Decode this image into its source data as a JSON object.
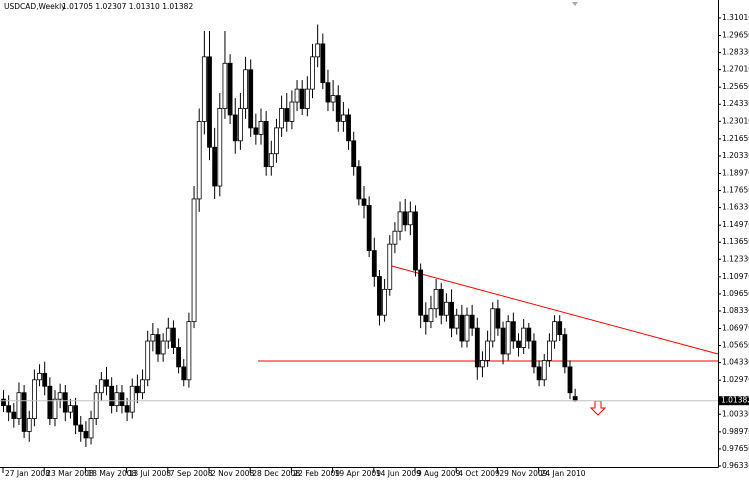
{
  "chart_data": {
    "type": "candlestick",
    "title": "USDCAD,Weekly",
    "info": "1.01705 1.02307 1.01310 1.01382",
    "categories": [
      "27 Jan 2008",
      null,
      null,
      null,
      null,
      null,
      null,
      null,
      "23 Mar 2008",
      null,
      null,
      null,
      null,
      null,
      null,
      null,
      "18 May 2008",
      null,
      null,
      null,
      null,
      null,
      null,
      null,
      "13 Jul 2008",
      null,
      null,
      null,
      null,
      null,
      null,
      null,
      "7 Sep 2008",
      null,
      null,
      null,
      null,
      null,
      null,
      null,
      "2 Nov 2008",
      null,
      null,
      null,
      null,
      null,
      null,
      null,
      "28 Dec 2008",
      null,
      null,
      null,
      null,
      null,
      null,
      null,
      "22 Feb 2009",
      null,
      null,
      null,
      null,
      null,
      null,
      null,
      "19 Apr 2009",
      null,
      null,
      null,
      null,
      null,
      null,
      null,
      "14 Jun 2009",
      null,
      null,
      null,
      null,
      null,
      null,
      null,
      "9 Aug 2009",
      null,
      null,
      null,
      null,
      null,
      null,
      null,
      "4 Oct 2009",
      null,
      null,
      null,
      null,
      null,
      null,
      null,
      "29 Nov 2009",
      null,
      null,
      null,
      null,
      null,
      null,
      null,
      "24 Jan 2010",
      null,
      null,
      null,
      null,
      null,
      null,
      null
    ],
    "open": [
      1.015,
      1.01,
      1.005,
      1.0,
      1.02,
      0.99,
      1.0,
      1.03,
      1.035,
      1.025,
      1.0,
      1.015,
      1.02,
      1.005,
      1.01,
      0.995,
      0.99,
      0.985,
      1.0,
      1.02,
      1.03,
      1.025,
      1.01,
      1.02,
      1.01,
      1.005,
      1.025,
      1.02,
      1.03,
      1.06,
      1.065,
      1.05,
      1.06,
      1.07,
      1.055,
      1.04,
      1.03,
      1.075,
      1.17,
      1.23,
      1.28,
      1.21,
      1.18,
      1.24,
      1.275,
      1.235,
      1.215,
      1.24,
      1.27,
      1.225,
      1.22,
      1.23,
      1.195,
      1.205,
      1.225,
      1.24,
      1.23,
      1.245,
      1.255,
      1.24,
      1.255,
      1.28,
      1.29,
      1.26,
      1.245,
      1.25,
      1.23,
      1.235,
      1.215,
      1.195,
      1.17,
      1.165,
      1.13,
      1.11,
      1.08,
      1.1,
      1.135,
      1.145,
      1.16,
      1.15,
      1.16,
      1.115,
      1.08,
      1.075,
      1.085,
      1.1,
      1.08,
      1.09,
      1.07,
      1.08,
      1.06,
      1.08,
      1.07,
      1.04,
      1.045,
      1.06,
      1.085,
      1.07,
      1.05,
      1.075,
      1.06,
      1.055,
      1.07,
      1.06,
      1.04,
      1.03,
      1.045,
      1.06,
      1.075,
      1.065,
      1.04,
      1.01705
    ],
    "high": [
      1.022,
      1.018,
      1.012,
      1.028,
      1.026,
      1.006,
      1.038,
      1.042,
      1.044,
      1.032,
      1.022,
      1.027,
      1.026,
      1.015,
      1.016,
      1.002,
      0.998,
      1.006,
      1.026,
      1.036,
      1.04,
      1.032,
      1.026,
      1.026,
      1.016,
      1.031,
      1.034,
      1.038,
      1.068,
      1.074,
      1.07,
      1.066,
      1.078,
      1.076,
      1.062,
      1.046,
      1.082,
      1.18,
      1.24,
      1.3,
      1.3,
      1.225,
      1.252,
      1.3,
      1.282,
      1.248,
      1.252,
      1.28,
      1.278,
      1.236,
      1.24,
      1.238,
      1.215,
      1.232,
      1.25,
      1.252,
      1.254,
      1.262,
      1.262,
      1.265,
      1.29,
      1.305,
      1.298,
      1.27,
      1.262,
      1.258,
      1.245,
      1.24,
      1.222,
      1.2,
      1.18,
      1.172,
      1.14,
      1.115,
      1.108,
      1.142,
      1.152,
      1.168,
      1.17,
      1.168,
      1.165,
      1.12,
      1.09,
      1.095,
      1.108,
      1.105,
      1.097,
      1.1,
      1.085,
      1.088,
      1.086,
      1.088,
      1.078,
      1.052,
      1.068,
      1.09,
      1.092,
      1.075,
      1.08,
      1.082,
      1.066,
      1.077,
      1.074,
      1.066,
      1.045,
      1.05,
      1.066,
      1.08,
      1.08,
      1.07,
      1.045,
      1.02307
    ],
    "low": [
      1.005,
      0.998,
      0.993,
      0.995,
      0.985,
      0.982,
      0.994,
      1.025,
      1.018,
      0.995,
      0.994,
      1.008,
      0.998,
      1.0,
      0.988,
      0.982,
      0.978,
      0.98,
      0.995,
      1.014,
      1.018,
      1.004,
      1.005,
      1.004,
      0.998,
      1.0,
      1.012,
      1.015,
      1.025,
      1.052,
      1.044,
      1.044,
      1.054,
      1.05,
      1.035,
      1.025,
      1.024,
      1.07,
      1.16,
      1.22,
      1.2,
      1.17,
      1.172,
      1.232,
      1.228,
      1.205,
      1.208,
      1.232,
      1.218,
      1.212,
      1.212,
      1.188,
      1.188,
      1.198,
      1.218,
      1.222,
      1.224,
      1.238,
      1.235,
      1.234,
      1.248,
      1.272,
      1.255,
      1.238,
      1.238,
      1.222,
      1.222,
      1.208,
      1.188,
      1.165,
      1.155,
      1.125,
      1.102,
      1.072,
      1.075,
      1.095,
      1.128,
      1.138,
      1.145,
      1.142,
      1.11,
      1.07,
      1.065,
      1.07,
      1.078,
      1.073,
      1.075,
      1.063,
      1.065,
      1.055,
      1.055,
      1.064,
      1.03,
      1.032,
      1.04,
      1.055,
      1.064,
      1.042,
      1.045,
      1.054,
      1.048,
      1.05,
      1.054,
      1.035,
      1.025,
      1.025,
      1.04,
      1.054,
      1.06,
      1.035,
      1.015,
      1.0131
    ],
    "close": [
      1.01,
      1.005,
      1.0,
      1.02,
      0.99,
      1.0,
      1.03,
      1.035,
      1.025,
      1.0,
      1.015,
      1.02,
      1.005,
      1.01,
      0.995,
      0.99,
      0.985,
      1.0,
      1.02,
      1.03,
      1.025,
      1.01,
      1.02,
      1.01,
      1.005,
      1.025,
      1.02,
      1.03,
      1.06,
      1.065,
      1.05,
      1.06,
      1.07,
      1.055,
      1.04,
      1.03,
      1.075,
      1.17,
      1.23,
      1.28,
      1.21,
      1.18,
      1.24,
      1.275,
      1.235,
      1.215,
      1.24,
      1.27,
      1.225,
      1.22,
      1.23,
      1.195,
      1.205,
      1.225,
      1.24,
      1.23,
      1.245,
      1.255,
      1.24,
      1.255,
      1.28,
      1.29,
      1.26,
      1.245,
      1.25,
      1.23,
      1.235,
      1.215,
      1.195,
      1.17,
      1.165,
      1.13,
      1.11,
      1.08,
      1.1,
      1.135,
      1.145,
      1.16,
      1.15,
      1.16,
      1.115,
      1.08,
      1.075,
      1.085,
      1.1,
      1.08,
      1.09,
      1.07,
      1.08,
      1.06,
      1.08,
      1.07,
      1.04,
      1.045,
      1.06,
      1.085,
      1.07,
      1.05,
      1.075,
      1.06,
      1.055,
      1.07,
      1.06,
      1.04,
      1.03,
      1.045,
      1.06,
      1.075,
      1.065,
      1.04,
      1.02,
      1.01382
    ],
    "ylim": [
      0.9625,
      1.3178
    ],
    "yticks": [
      {
        "value": 1.3101,
        "label": "1.31010"
      },
      {
        "value": 1.2965,
        "label": "1.29650"
      },
      {
        "value": 1.2833,
        "label": "1.28330"
      },
      {
        "value": 1.2701,
        "label": "1.27010"
      },
      {
        "value": 1.2565,
        "label": "1.25650"
      },
      {
        "value": 1.2433,
        "label": "1.24330"
      },
      {
        "value": 1.2301,
        "label": "1.23010"
      },
      {
        "value": 1.2165,
        "label": "1.21650"
      },
      {
        "value": 1.2033,
        "label": "1.20330"
      },
      {
        "value": 1.1897,
        "label": "1.18970"
      },
      {
        "value": 1.1765,
        "label": "1.17650"
      },
      {
        "value": 1.1633,
        "label": "1.16330"
      },
      {
        "value": 1.1497,
        "label": "1.14970"
      },
      {
        "value": 1.1365,
        "label": "1.13650"
      },
      {
        "value": 1.1233,
        "label": "1.12330"
      },
      {
        "value": 1.1097,
        "label": "1.10970"
      },
      {
        "value": 1.0965,
        "label": "1.09650"
      },
      {
        "value": 1.0833,
        "label": "1.08330"
      },
      {
        "value": 1.0697,
        "label": "1.06970"
      },
      {
        "value": 1.0565,
        "label": "1.05650"
      },
      {
        "value": 1.0433,
        "label": "1.04330"
      },
      {
        "value": 1.0297,
        "label": "1.02970"
      },
      {
        "value": 1.0033,
        "label": "1.00330"
      },
      {
        "value": 0.9897,
        "label": "0.98970"
      },
      {
        "value": 0.9765,
        "label": "0.97650"
      },
      {
        "value": 0.9633,
        "label": "0.96330"
      }
    ],
    "grid": false
  }
}
